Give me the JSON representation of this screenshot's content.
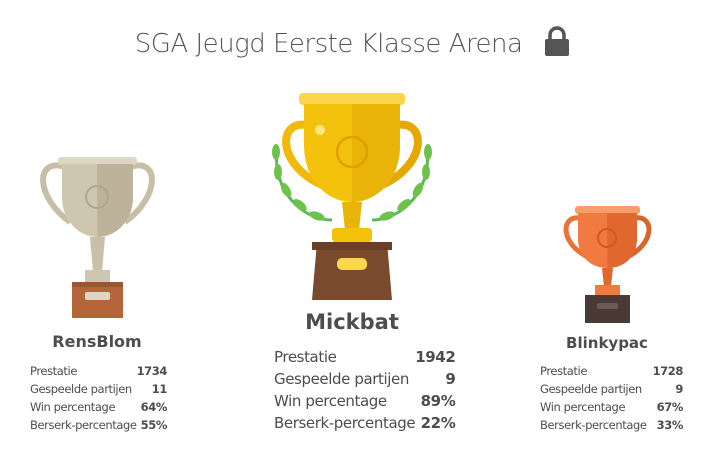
{
  "title": "SGA Jeugd Eerste Klasse Arena",
  "title_icon": "lock-icon",
  "colors": {
    "gold": "#f4c20d",
    "silver": "#cfc6b0",
    "bronze": "#f07a3f",
    "text": "#4d4d4d"
  },
  "podium": [
    {
      "rank": 2,
      "name": "RensBlom",
      "trophy": "silver-trophy-icon",
      "stats": [
        {
          "label": "Prestatie",
          "value": "1734"
        },
        {
          "label": "Gespeelde partijen",
          "value": "11"
        },
        {
          "label": "Win percentage",
          "value": "64%"
        },
        {
          "label": "Berserk-percentage",
          "value": "55%"
        }
      ]
    },
    {
      "rank": 1,
      "name": "Mickbat",
      "trophy": "gold-trophy-icon",
      "stats": [
        {
          "label": "Prestatie",
          "value": "1942"
        },
        {
          "label": "Gespeelde partijen",
          "value": "9"
        },
        {
          "label": "Win percentage",
          "value": "89%"
        },
        {
          "label": "Berserk-percentage",
          "value": "22%"
        }
      ]
    },
    {
      "rank": 3,
      "name": "Blinkypac",
      "trophy": "bronze-trophy-icon",
      "stats": [
        {
          "label": "Prestatie",
          "value": "1728"
        },
        {
          "label": "Gespeelde partijen",
          "value": "9"
        },
        {
          "label": "Win percentage",
          "value": "67%"
        },
        {
          "label": "Berserk-percentage",
          "value": "33%"
        }
      ]
    }
  ]
}
